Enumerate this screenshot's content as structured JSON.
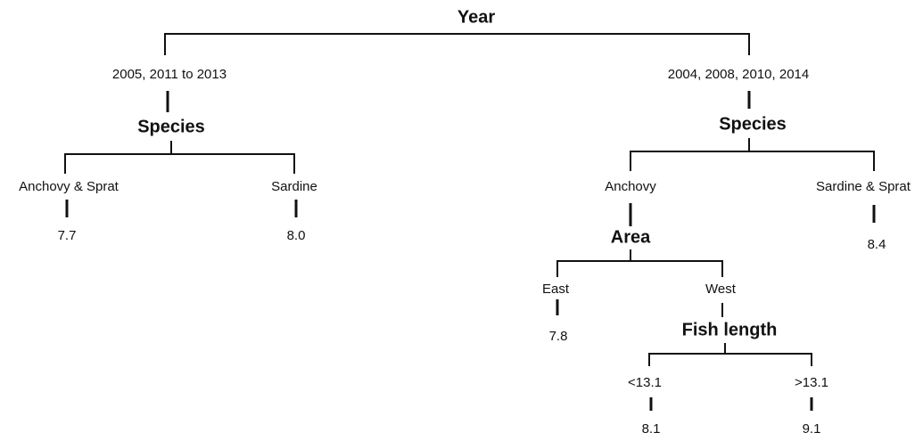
{
  "tree": {
    "root": {
      "label": "Year",
      "branches": [
        {
          "label": "2005, 2011 to 2013",
          "node": {
            "label": "Species",
            "branches": [
              {
                "label": "Anchovy & Sprat",
                "leaf": "7.7"
              },
              {
                "label": "Sardine",
                "leaf": "8.0"
              }
            ]
          }
        },
        {
          "label": "2004, 2008, 2010, 2014",
          "node": {
            "label": "Species",
            "branches": [
              {
                "label": "Anchovy",
                "node": {
                  "label": "Area",
                  "branches": [
                    {
                      "label": "East",
                      "leaf": "7.8"
                    },
                    {
                      "label": "West",
                      "node": {
                        "label": "Fish length",
                        "branches": [
                          {
                            "label": "<13.1",
                            "leaf": "8.1"
                          },
                          {
                            "label": ">13.1",
                            "leaf": "9.1"
                          }
                        ]
                      }
                    }
                  ]
                }
              },
              {
                "label": "Sardine & Sprat",
                "leaf": "8.4"
              }
            ]
          }
        }
      ]
    }
  }
}
